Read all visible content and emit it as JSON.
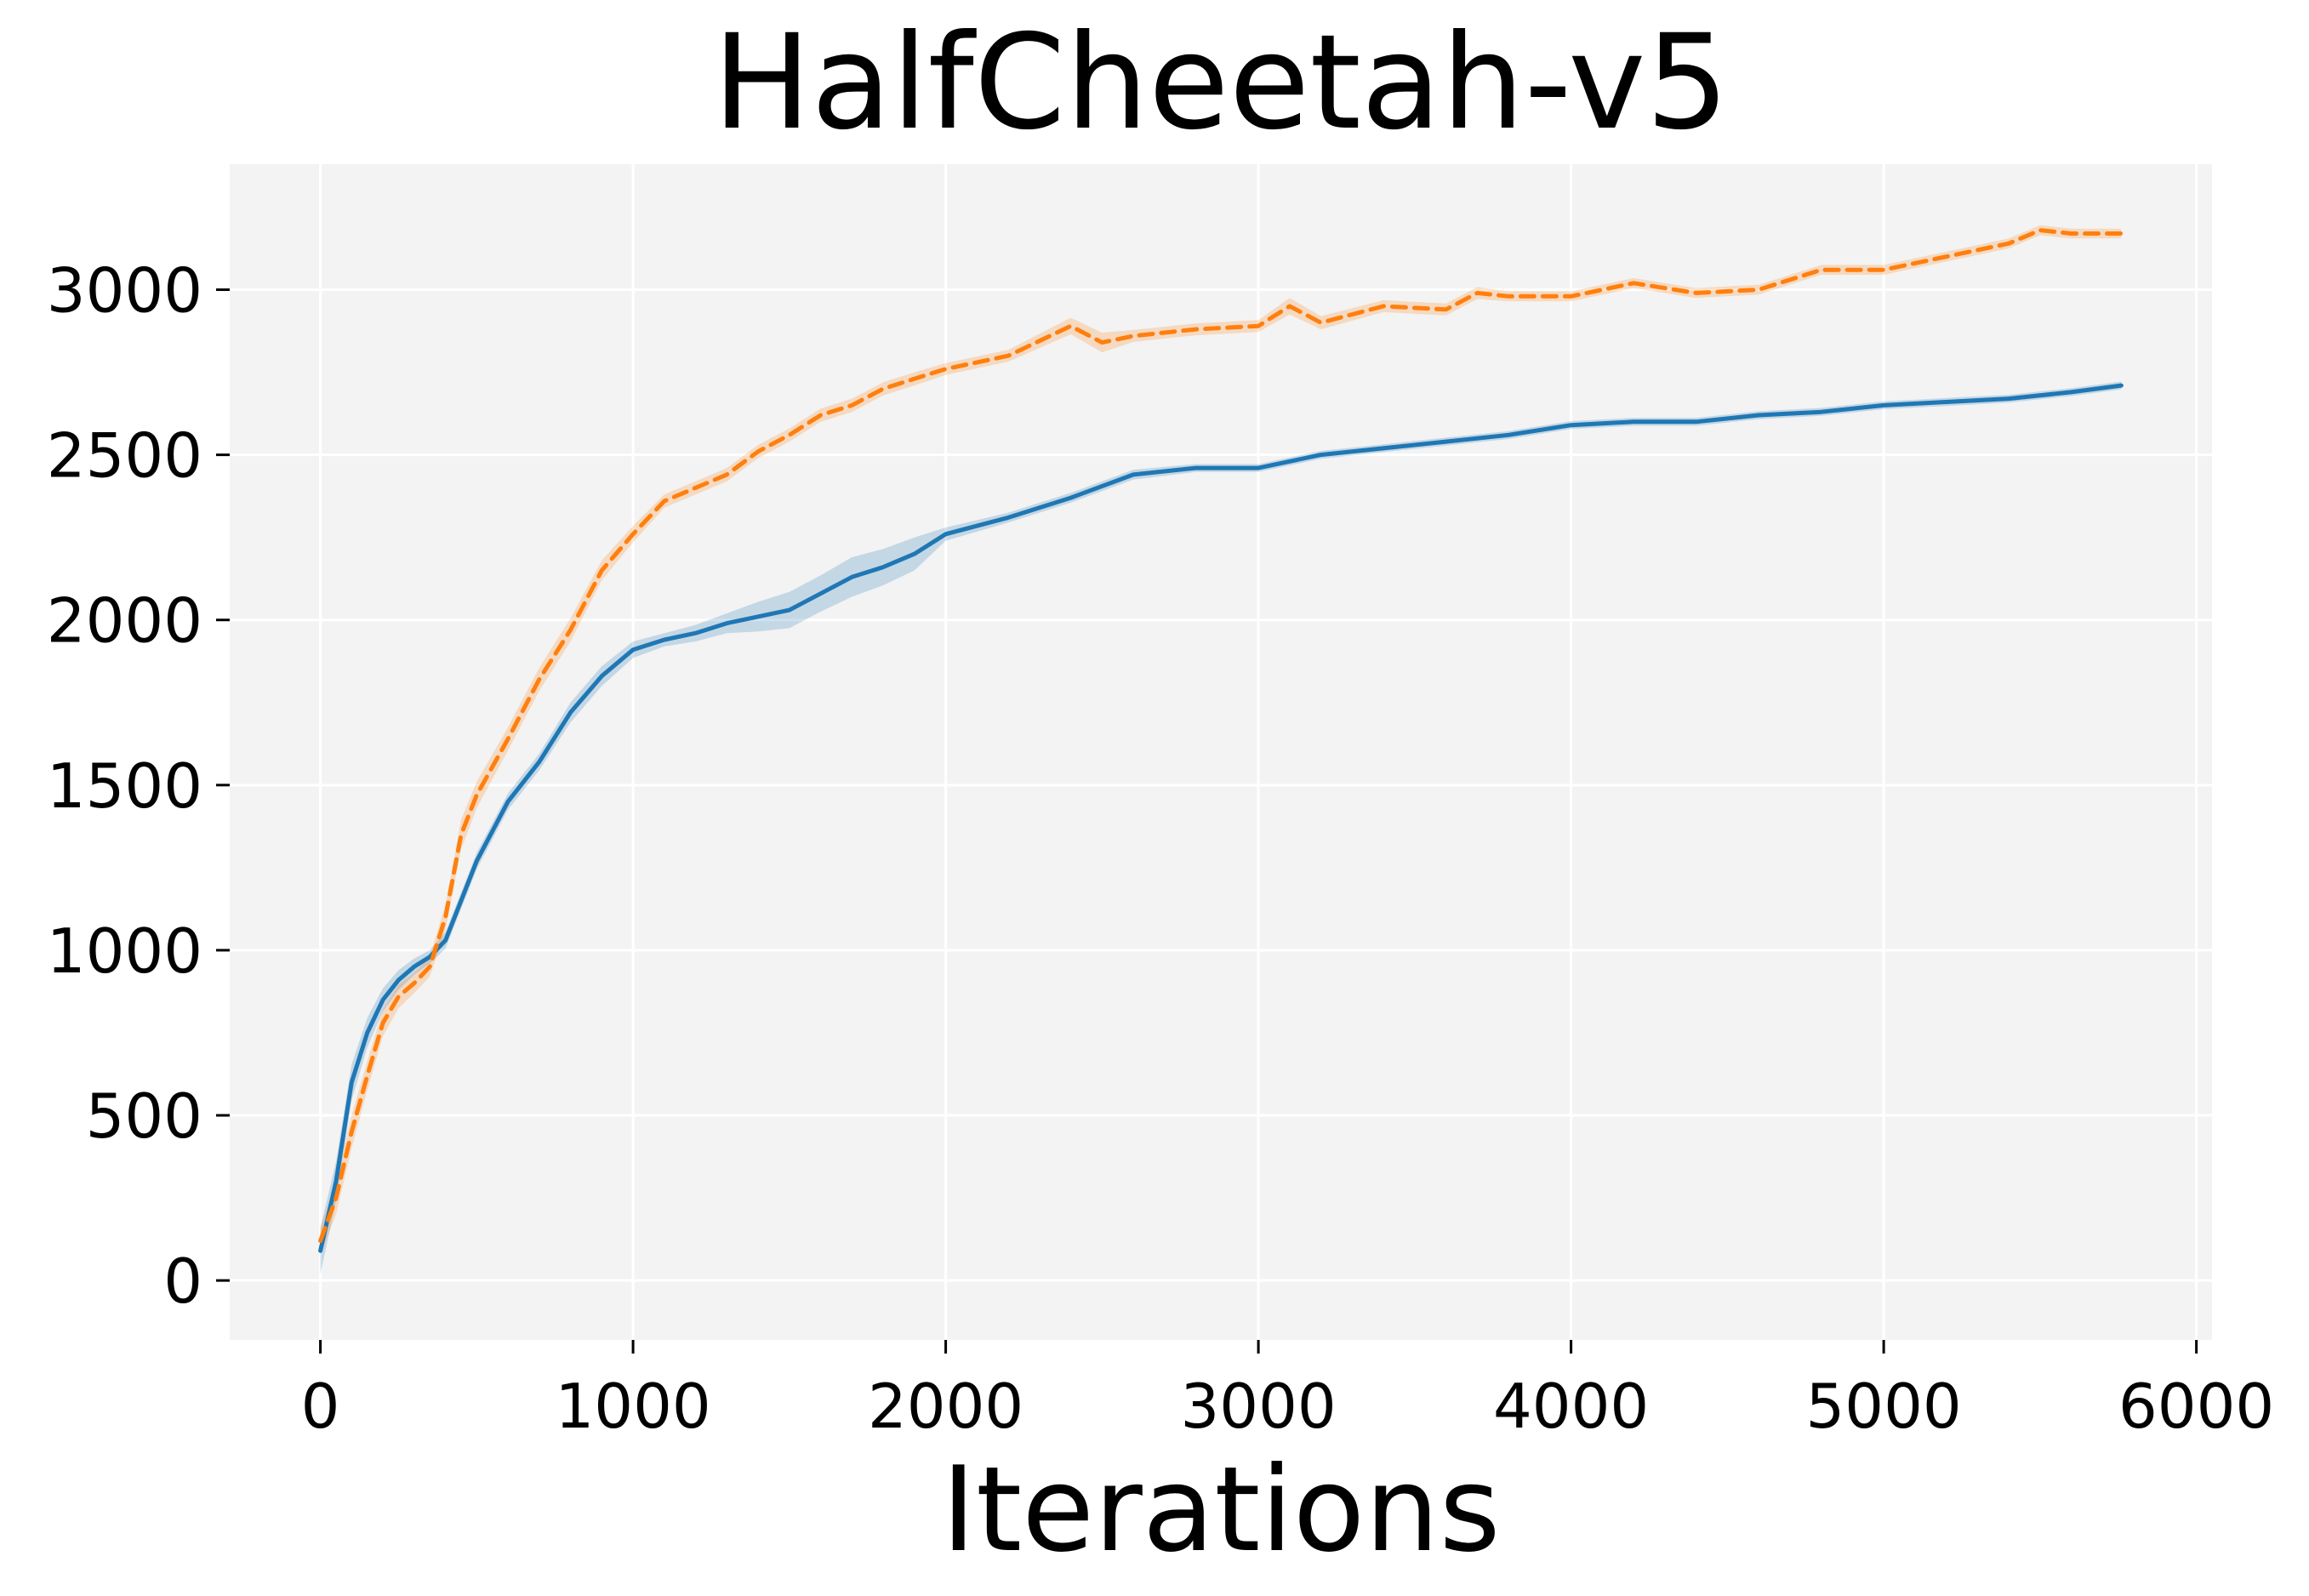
{
  "chart_data": {
    "type": "line",
    "title": "HalfCheetah-v5",
    "xlabel": "Iterations",
    "ylabel": "",
    "xlim": [
      -290,
      6050
    ],
    "ylim": [
      -180,
      3380
    ],
    "xticks": [
      0,
      1000,
      2000,
      3000,
      4000,
      5000,
      6000
    ],
    "yticks": [
      0,
      500,
      1000,
      1500,
      2000,
      2500,
      3000
    ],
    "grid": true,
    "legend": "none",
    "series": [
      {
        "color": "#1f77b4",
        "line_style": "solid",
        "x": [
          0,
          50,
          100,
          150,
          200,
          250,
          300,
          350,
          400,
          450,
          500,
          600,
          700,
          800,
          900,
          1000,
          1100,
          1200,
          1300,
          1400,
          1500,
          1600,
          1700,
          1800,
          1900,
          2000,
          2200,
          2400,
          2600,
          2800,
          3000,
          3200,
          3400,
          3600,
          3800,
          4000,
          4200,
          4400,
          4600,
          4800,
          5000,
          5200,
          5400,
          5600,
          5760
        ],
        "y": [
          90,
          300,
          600,
          750,
          850,
          910,
          950,
          980,
          1030,
          1150,
          1270,
          1450,
          1570,
          1720,
          1830,
          1910,
          1940,
          1960,
          1990,
          2010,
          2030,
          2080,
          2130,
          2160,
          2200,
          2260,
          2310,
          2370,
          2440,
          2460,
          2460,
          2500,
          2520,
          2540,
          2560,
          2590,
          2600,
          2600,
          2620,
          2630,
          2650,
          2660,
          2670,
          2690,
          2710
        ],
        "band": [
          70,
          60,
          55,
          45,
          35,
          30,
          25,
          20,
          25,
          25,
          25,
          25,
          25,
          30,
          30,
          25,
          20,
          25,
          30,
          45,
          55,
          55,
          60,
          55,
          50,
          20,
          15,
          15,
          15,
          12,
          12,
          12,
          12,
          12,
          12,
          12,
          12,
          12,
          12,
          12,
          12,
          12,
          12,
          12,
          12
        ]
      },
      {
        "color": "#ff7f0e",
        "line_style": "dashed",
        "x": [
          0,
          50,
          100,
          150,
          200,
          250,
          300,
          350,
          400,
          450,
          500,
          600,
          700,
          800,
          900,
          1000,
          1100,
          1200,
          1300,
          1400,
          1500,
          1600,
          1700,
          1800,
          1900,
          2000,
          2200,
          2400,
          2500,
          2600,
          2800,
          3000,
          3100,
          3200,
          3400,
          3600,
          3700,
          3800,
          4000,
          4200,
          4400,
          4600,
          4800,
          5000,
          5200,
          5400,
          5500,
          5600,
          5760
        ],
        "y": [
          120,
          250,
          450,
          620,
          780,
          860,
          900,
          950,
          1100,
          1350,
          1470,
          1640,
          1820,
          1970,
          2150,
          2260,
          2360,
          2400,
          2440,
          2510,
          2560,
          2620,
          2650,
          2700,
          2730,
          2760,
          2800,
          2890,
          2840,
          2860,
          2880,
          2890,
          2950,
          2900,
          2950,
          2940,
          2990,
          2980,
          2980,
          3020,
          2990,
          3000,
          3060,
          3060,
          3100,
          3140,
          3180,
          3170,
          3170
        ],
        "band": [
          40,
          50,
          50,
          45,
          40,
          35,
          30,
          30,
          40,
          45,
          40,
          35,
          35,
          35,
          30,
          25,
          20,
          20,
          20,
          20,
          20,
          20,
          20,
          20,
          20,
          18,
          18,
          25,
          30,
          18,
          18,
          18,
          25,
          20,
          18,
          18,
          18,
          15,
          15,
          15,
          15,
          15,
          15,
          15,
          15,
          15,
          15,
          15,
          15
        ]
      }
    ]
  }
}
